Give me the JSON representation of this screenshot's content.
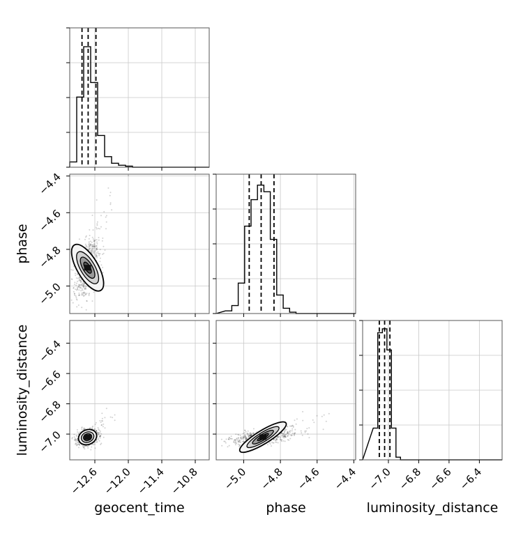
{
  "chart_data": {
    "type": "corner",
    "parameters": [
      "geocent_time",
      "phase",
      "luminosity_distance"
    ],
    "axis_labels": {
      "x": [
        "geocent_time",
        "phase",
        "luminosity_distance"
      ],
      "y": [
        "",
        "phase",
        "luminosity_distance"
      ]
    },
    "ranges": [
      [
        -13.05,
        -10.55
      ],
      [
        -5.15,
        -4.39
      ],
      [
        -7.17,
        -6.25
      ]
    ],
    "ticks": [
      {
        "values": [
          -12.6,
          -12.0,
          -11.4,
          -10.8
        ],
        "labels": [
          "−12.6",
          "−12.0",
          "−11.4",
          "−10.8"
        ]
      },
      {
        "values": [
          -5.0,
          -4.8,
          -4.6,
          -4.4
        ],
        "labels": [
          "−5.0",
          "−4.8",
          "−4.6",
          "−4.4"
        ]
      },
      {
        "values": [
          -7.0,
          -6.8,
          -6.6,
          -6.4
        ],
        "labels": [
          "−7.0",
          "−6.8",
          "−6.6",
          "−6.4"
        ]
      }
    ],
    "grid": true,
    "histograms": [
      {
        "param": "geocent_time",
        "bin_edges": [
          -13.05,
          -12.925,
          -12.8,
          -12.675,
          -12.55,
          -12.425,
          -12.3,
          -12.175,
          -12.05,
          -11.925,
          -11.8
        ],
        "counts": [
          0.04,
          0.53,
          0.91,
          0.64,
          0.24,
          0.08,
          0.03,
          0.015,
          0.008,
          0.0
        ],
        "quantiles": [
          -12.83,
          -12.72,
          -12.58
        ]
      },
      {
        "param": "phase",
        "bin_edges": [
          -5.1,
          -5.065,
          -5.03,
          -4.995,
          -4.96,
          -4.925,
          -4.89,
          -4.855,
          -4.82,
          -4.785,
          -4.75,
          -4.715,
          -4.68
        ],
        "counts": [
          0.02,
          0.06,
          0.23,
          0.66,
          0.86,
          0.97,
          0.92,
          0.56,
          0.14,
          0.04,
          0.01,
          0.0
        ],
        "quantiles": [
          -4.97,
          -4.905,
          -4.835
        ]
      },
      {
        "param": "luminosity_distance",
        "bin_edges": [
          -7.1,
          -7.07,
          -7.04,
          -7.01,
          -6.98,
          -6.95,
          -6.92,
          -6.89
        ],
        "counts": [
          0.24,
          0.96,
          0.99,
          0.83,
          0.24,
          0.02,
          0.0
        ],
        "quantiles": [
          -7.06,
          -7.025,
          -6.99
        ]
      }
    ],
    "contours_2d": [
      {
        "x": "geocent_time",
        "y": "phase",
        "center": [
          -12.73,
          -4.9
        ],
        "sigma": [
          0.09,
          0.065
        ],
        "rho": 0.45
      },
      {
        "x": "geocent_time",
        "y": "luminosity_distance",
        "center": [
          -12.73,
          -7.02
        ],
        "sigma": [
          0.08,
          0.022
        ],
        "rho": 0.2
      },
      {
        "x": "phase",
        "y": "luminosity_distance",
        "center": [
          -4.895,
          -7.02
        ],
        "sigma": [
          0.07,
          0.02
        ],
        "rho": 0.5
      }
    ]
  }
}
